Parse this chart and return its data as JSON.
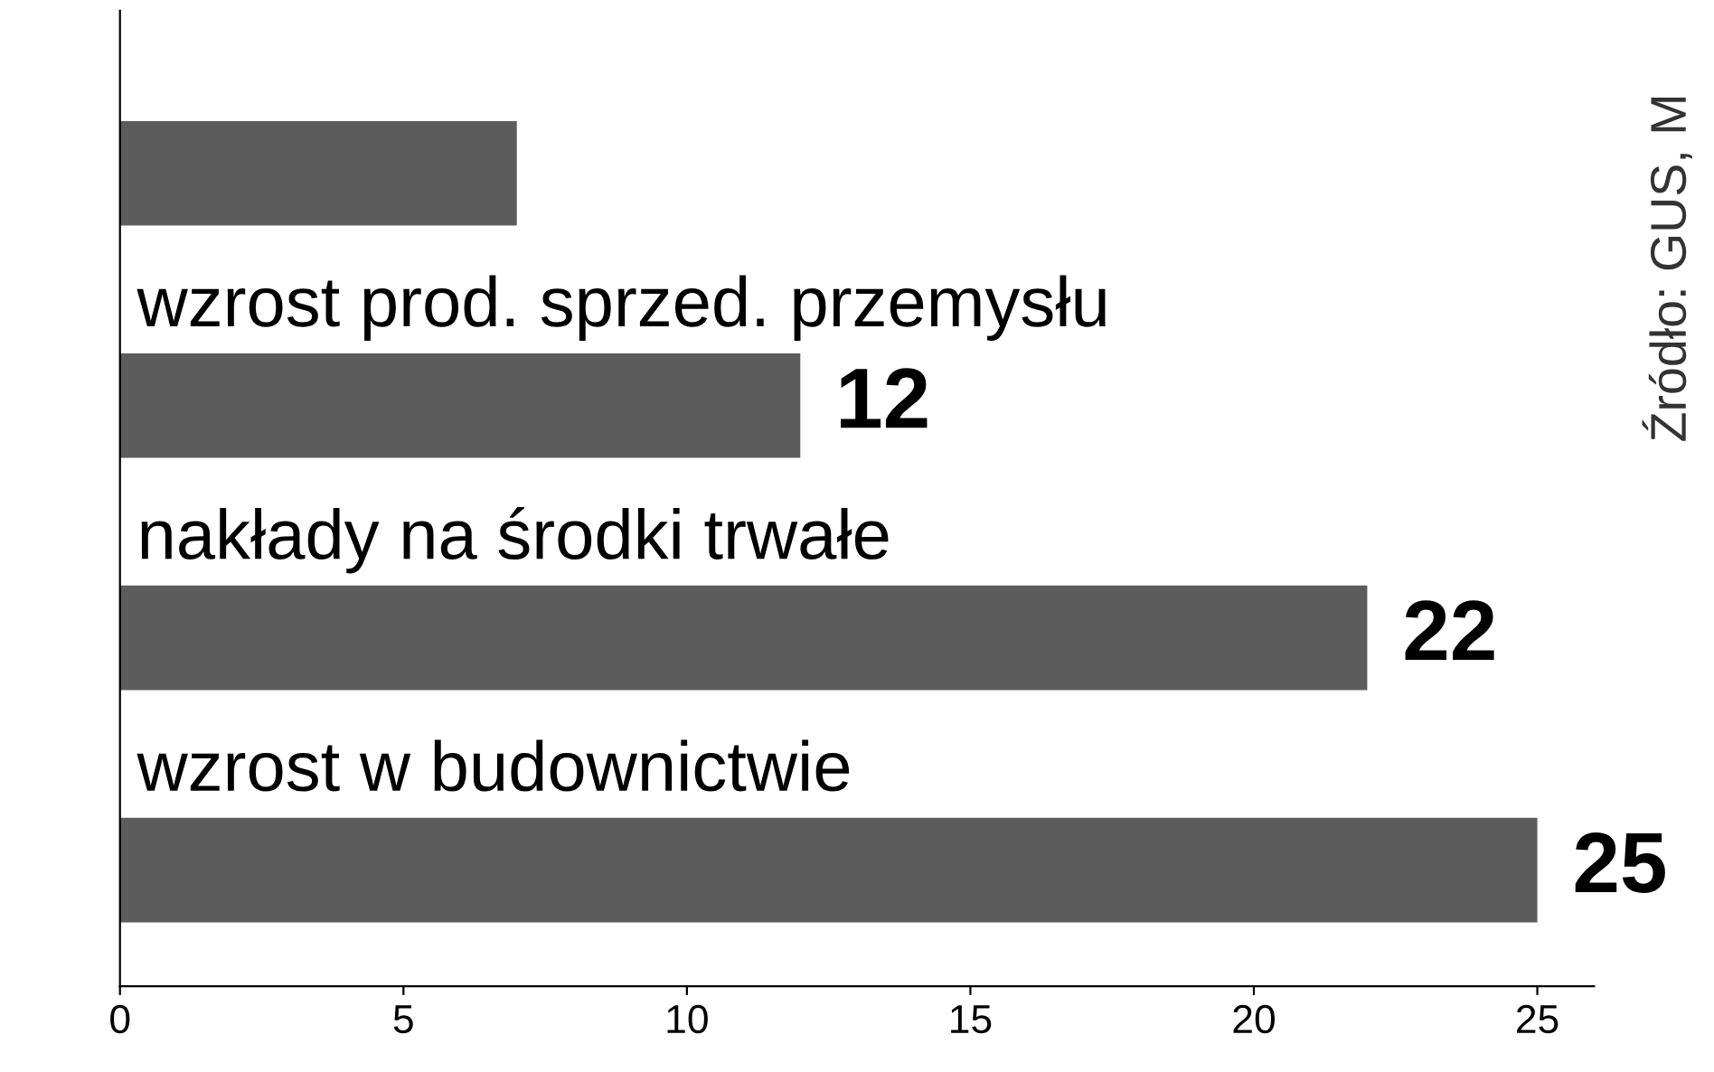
{
  "chart_data": {
    "type": "bar",
    "orientation": "horizontal",
    "categories": [
      null,
      "wzrost prod. sprzed. przemysłu",
      "nakłady na środki trwałe",
      "wzrost w budownictwie"
    ],
    "values": [
      7,
      12,
      22,
      25
    ],
    "value_labels": [
      null,
      "12",
      "22",
      "25"
    ],
    "color": "#5c5c5c",
    "xlim": [
      0,
      26
    ],
    "xticks": [
      0,
      5,
      10,
      15,
      20,
      25
    ],
    "annotations": [
      "Źródło: GUS, M"
    ]
  }
}
